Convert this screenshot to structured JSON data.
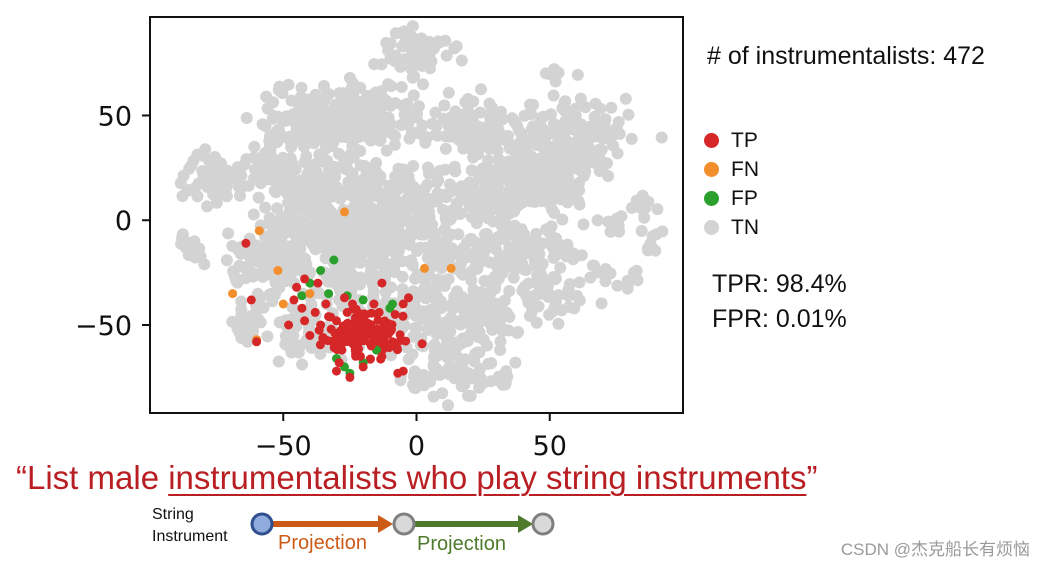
{
  "chart_data": {
    "type": "scatter",
    "xlim": [
      -100,
      100
    ],
    "ylim": [
      -92,
      97
    ],
    "x_ticks": [
      -50,
      0,
      50
    ],
    "y_ticks": [
      50,
      0,
      -50
    ],
    "x_tick_labels": [
      "−50",
      "0",
      "50"
    ],
    "y_tick_labels": [
      "50",
      "0",
      "−50"
    ],
    "grid": false,
    "legend_position": "right",
    "series": [
      {
        "name": "TP",
        "color": "#d62728",
        "points": [
          [
            -22,
            -52
          ],
          [
            -18,
            -50
          ],
          [
            -15,
            -55
          ],
          [
            -20,
            -57
          ],
          [
            -25,
            -50
          ],
          [
            -28,
            -55
          ],
          [
            -12,
            -48
          ],
          [
            -10,
            -53
          ],
          [
            -17,
            -60
          ],
          [
            -23,
            -62
          ],
          [
            -30,
            -48
          ],
          [
            -14,
            -44
          ],
          [
            -19,
            -45
          ],
          [
            -26,
            -44
          ],
          [
            -9,
            -58
          ],
          [
            -32,
            -52
          ],
          [
            -35,
            -56
          ],
          [
            -21,
            -65
          ],
          [
            -13,
            -65
          ],
          [
            -28,
            -62
          ],
          [
            -16,
            -40
          ],
          [
            -24,
            -40
          ],
          [
            -33,
            -46
          ],
          [
            -8,
            -45
          ],
          [
            -11,
            -60
          ],
          [
            -36,
            -50
          ],
          [
            -40,
            -55
          ],
          [
            -38,
            -44
          ],
          [
            -42,
            -48
          ],
          [
            -20,
            -70
          ],
          [
            -29,
            -68
          ],
          [
            -5,
            -40
          ],
          [
            -3,
            -37
          ],
          [
            -27,
            -37
          ],
          [
            -34,
            -40
          ],
          [
            -43,
            -42
          ],
          [
            -46,
            -38
          ],
          [
            -48,
            -50
          ],
          [
            -60,
            -58
          ],
          [
            -62,
            -38
          ],
          [
            -64,
            -11
          ],
          [
            -37,
            -30
          ],
          [
            -42,
            -28
          ],
          [
            -45,
            -32
          ],
          [
            -13,
            -30
          ],
          [
            -5,
            -72
          ],
          [
            -7,
            -73
          ],
          [
            -30,
            -72
          ],
          [
            -25,
            -75
          ]
        ]
      },
      {
        "name": "FN",
        "color": "#f28e2b",
        "points": [
          [
            -27,
            4
          ],
          [
            -59,
            -5
          ],
          [
            -69,
            -35
          ],
          [
            -50,
            -40
          ],
          [
            -40,
            -35
          ],
          [
            -52,
            -24
          ],
          [
            -60,
            -57
          ],
          [
            3,
            -23
          ],
          [
            13,
            -23
          ]
        ]
      },
      {
        "name": "FP",
        "color": "#2ca02c",
        "points": [
          [
            -36,
            -24
          ],
          [
            -31,
            -19
          ],
          [
            -40,
            -30
          ],
          [
            -33,
            -35
          ],
          [
            -26,
            -36
          ],
          [
            -20,
            -38
          ],
          [
            -10,
            -42
          ],
          [
            -30,
            -66
          ],
          [
            -25,
            -73
          ],
          [
            -20,
            -68
          ],
          [
            -15,
            -62
          ],
          [
            -9,
            -40
          ],
          [
            -43,
            -36
          ],
          [
            -27,
            -70
          ]
        ]
      },
      {
        "name": "TN",
        "color": "#d3d3d3",
        "points": []
      }
    ]
  },
  "stats": {
    "count_text": "# of instrumentalists: 472",
    "tpr_text": "TPR: 98.4%",
    "fpr_text": "FPR: 0.01%"
  },
  "query": {
    "open_quote": "“",
    "prefix": "List male ",
    "underlined": "instrumentalists who play string instruments",
    "close_quote": "”"
  },
  "pipeline": {
    "start_label_line1": "String",
    "start_label_line2": "Instrument",
    "proj1_label": "Projection",
    "proj1_color": "#cc5a16",
    "proj2_label": "Projection",
    "proj2_color": "#4e7a2c",
    "start_node_color": "#8faadc",
    "node_color": "#d9d9d9"
  },
  "watermark": "CSDN @杰克船长有烦恼"
}
